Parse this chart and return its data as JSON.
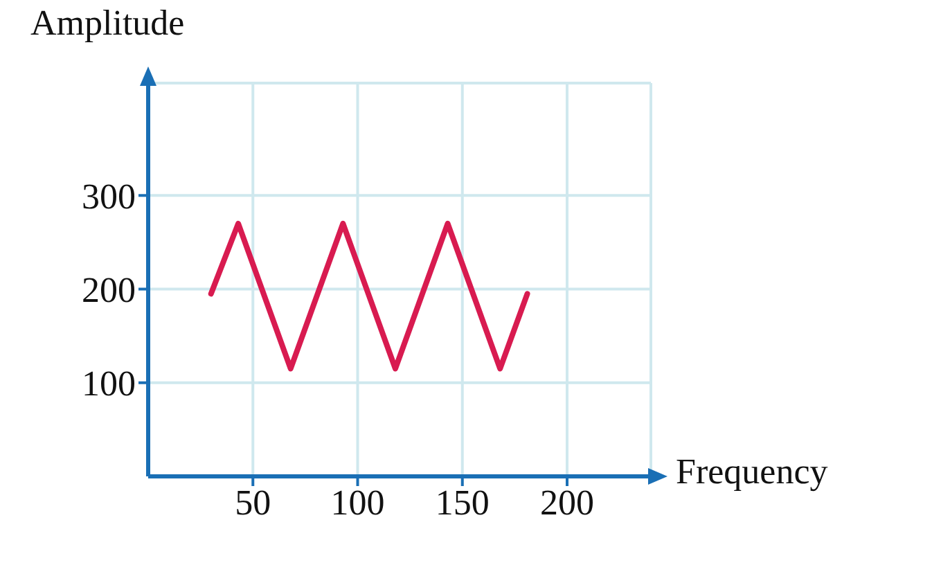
{
  "chart_data": {
    "type": "line",
    "xlabel": "Frequency",
    "ylabel": "Amplitude",
    "x": [
      30,
      43,
      68,
      93,
      118,
      143,
      168,
      181
    ],
    "series": [
      {
        "color": "#d81b50",
        "values": [
          195,
          270,
          115,
          270,
          115,
          270,
          115,
          195
        ]
      }
    ],
    "xlim": [
      0,
      240
    ],
    "xticks": [
      50,
      100,
      150,
      200
    ],
    "ylim": [
      0,
      420
    ],
    "yticks": [
      100,
      200,
      300
    ],
    "grid": true,
    "marker": "none",
    "line_style": "solid"
  }
}
